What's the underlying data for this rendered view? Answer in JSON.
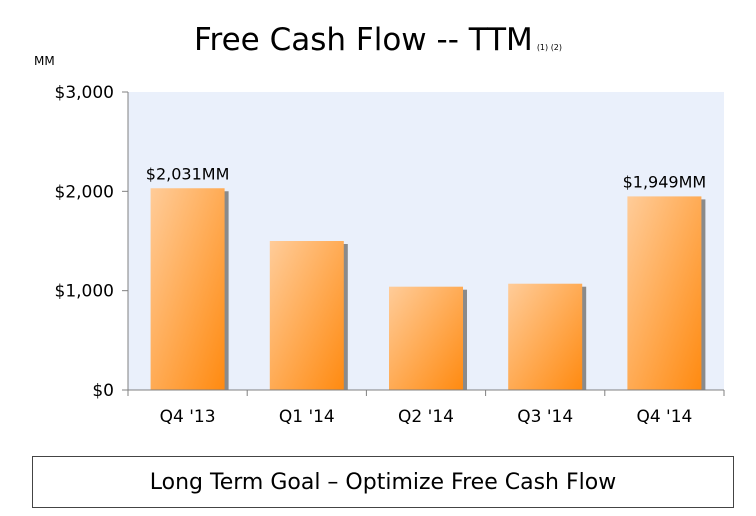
{
  "chart_data": {
    "type": "bar",
    "title": "Free Cash Flow -- TTM",
    "title_note": "(1) (2)",
    "ylabel": "MM",
    "xlabel": "",
    "categories": [
      "Q4 '13",
      "Q1 '14",
      "Q2 '14",
      "Q3 '14",
      "Q4 '14"
    ],
    "values": [
      2031,
      1500,
      1040,
      1070,
      1949
    ],
    "ylim": [
      0,
      3000
    ],
    "yticks": [
      {
        "value": 0,
        "label": "$0"
      },
      {
        "value": 1000,
        "label": "$1,000"
      },
      {
        "value": 2000,
        "label": "$2,000"
      },
      {
        "value": 3000,
        "label": "$3,000"
      }
    ],
    "data_labels": [
      "$2,031MM",
      "",
      "",
      "",
      "$1,949MM"
    ],
    "grid": false,
    "colors": {
      "plot_background": "#eaf0fb",
      "bar_light": "#ffcc99",
      "bar_dark": "#ff8a10",
      "bar_shadow": "#8a8a8a",
      "axis": "#808080"
    }
  },
  "footer": {
    "goal_text": "Long Term Goal – Optimize Free Cash Flow"
  }
}
